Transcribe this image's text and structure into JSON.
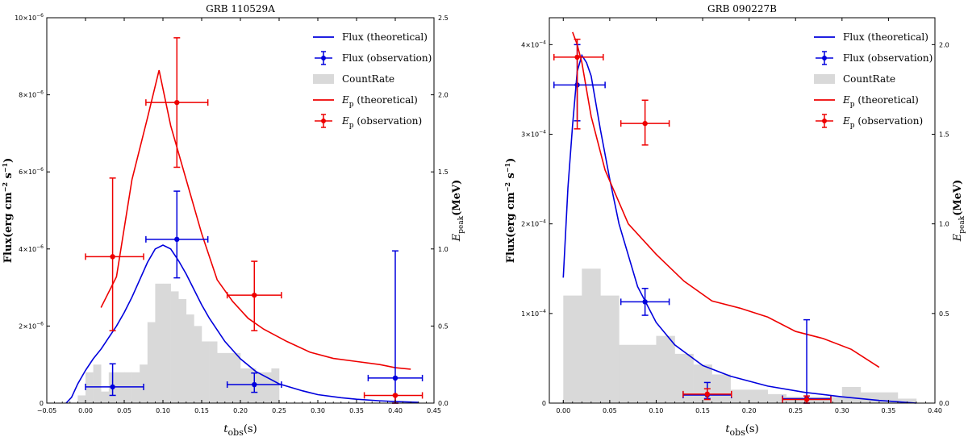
{
  "chart_data": [
    {
      "type": "line",
      "title": "GRB 110529A",
      "xlabel": "t_obs(s)",
      "ylabel": "Flux(erg cm^-2 s^-1)",
      "y2label": "E_peak(MeV)",
      "xlim": [
        -0.05,
        0.45
      ],
      "ylim": [
        0,
        1e-05
      ],
      "y2lim": [
        0,
        2.5
      ],
      "x_ticks": [
        -0.05,
        0.0,
        0.05,
        0.1,
        0.15,
        0.2,
        0.25,
        0.3,
        0.35,
        0.4,
        0.45
      ],
      "x_tick_labels": [
        "−0.05",
        "0.00",
        "0.05",
        "0.10",
        "0.15",
        "0.20",
        "0.25",
        "0.30",
        "0.35",
        "0.40",
        "0.45"
      ],
      "y_ticks": [
        0,
        2e-06,
        4e-06,
        6e-06,
        8e-06,
        1e-05
      ],
      "y_tick_labels": [
        "0",
        "2×10⁻⁶",
        "4×10⁻⁶",
        "6×10⁻⁶",
        "8×10⁻⁶",
        "10×10⁻⁶"
      ],
      "y2_ticks": [
        0,
        0.5,
        1.0,
        1.5,
        2.0,
        2.5
      ],
      "y2_tick_labels": [
        "0.0",
        "0.5",
        "1.0",
        "1.5",
        "2.0",
        "2.5"
      ],
      "legend": {
        "position": "top-right",
        "entries": [
          {
            "label": "Flux (theoretical)",
            "kind": "line",
            "color": "#0000dd"
          },
          {
            "label": "Flux (observation)",
            "kind": "errorbar",
            "color": "#0000dd"
          },
          {
            "label": "CountRate",
            "kind": "patch",
            "color": "#d9d9d9"
          },
          {
            "label": "Ep (theoretical)",
            "kind": "line",
            "color": "#ee0000"
          },
          {
            "label": "Ep (observation)",
            "kind": "errorbar",
            "color": "#ee0000"
          }
        ]
      },
      "count_rate": {
        "axis": "y",
        "bin_width": 0.01,
        "x": [
          -0.01,
          0.0,
          0.01,
          0.02,
          0.03,
          0.04,
          0.05,
          0.06,
          0.07,
          0.08,
          0.09,
          0.1,
          0.11,
          0.12,
          0.13,
          0.14,
          0.15,
          0.16,
          0.17,
          0.18,
          0.19,
          0.2,
          0.21,
          0.22,
          0.23,
          0.24
        ],
        "values": [
          2e-07,
          8e-07,
          1e-06,
          3e-07,
          8e-07,
          8e-07,
          8e-07,
          8e-07,
          1e-06,
          2.1e-06,
          3.1e-06,
          3.1e-06,
          2.9e-06,
          2.7e-06,
          2.3e-06,
          2e-06,
          1.6e-06,
          1.6e-06,
          1.3e-06,
          1.3e-06,
          1.3e-06,
          9e-07,
          9e-07,
          8e-07,
          8e-07,
          9e-07
        ]
      },
      "flux_theoretical": {
        "axis": "y",
        "x": [
          -0.025,
          -0.018,
          -0.01,
          0.0,
          0.01,
          0.02,
          0.03,
          0.04,
          0.05,
          0.06,
          0.07,
          0.08,
          0.09,
          0.1,
          0.11,
          0.12,
          0.13,
          0.14,
          0.15,
          0.16,
          0.18,
          0.2,
          0.22,
          0.25,
          0.28,
          0.3,
          0.33,
          0.35,
          0.38,
          0.4,
          0.43
        ],
        "values": [
          0.0,
          1.5e-07,
          5e-07,
          8.5e-07,
          1.15e-06,
          1.4e-06,
          1.7e-06,
          2e-06,
          2.35e-06,
          2.75e-06,
          3.2e-06,
          3.65e-06,
          4e-06,
          4.1e-06,
          4e-06,
          3.7e-06,
          3.35e-06,
          2.95e-06,
          2.55e-06,
          2.2e-06,
          1.6e-06,
          1.15e-06,
          8.2e-07,
          5e-07,
          3.2e-07,
          2.2e-07,
          1.4e-07,
          1e-07,
          6e-08,
          4e-08,
          2e-08
        ]
      },
      "ep_theoretical": {
        "axis": "y2",
        "x": [
          0.02,
          0.04,
          0.06,
          0.08,
          0.095,
          0.11,
          0.13,
          0.15,
          0.17,
          0.19,
          0.21,
          0.23,
          0.26,
          0.29,
          0.32,
          0.35,
          0.38,
          0.4,
          0.42
        ],
        "values": [
          0.62,
          0.82,
          1.45,
          1.85,
          2.16,
          1.8,
          1.45,
          1.1,
          0.8,
          0.66,
          0.55,
          0.48,
          0.4,
          0.33,
          0.29,
          0.27,
          0.25,
          0.23,
          0.22
        ]
      },
      "flux_observation": {
        "axis": "y",
        "points": [
          {
            "x": 0.035,
            "y": 4.2e-07,
            "xerr": [
              0.035,
              0.04
            ],
            "yerr": [
              2.2e-07,
              6e-07
            ]
          },
          {
            "x": 0.118,
            "y": 4.25e-06,
            "xerr": [
              0.04,
              0.04
            ],
            "yerr": [
              1e-06,
              1.25e-06
            ]
          },
          {
            "x": 0.218,
            "y": 4.8e-07,
            "xerr": [
              0.035,
              0.035
            ],
            "yerr": [
              2e-07,
              3e-07
            ]
          },
          {
            "x": 0.4,
            "y": 6.5e-07,
            "xerr": [
              0.035,
              0.035
            ],
            "yerr": [
              6.5e-07,
              3.3e-06
            ]
          }
        ]
      },
      "ep_observation": {
        "axis": "y2",
        "points": [
          {
            "x": 0.035,
            "y": 0.95,
            "xerr": [
              0.035,
              0.04
            ],
            "yerr": [
              0.48,
              0.51
            ]
          },
          {
            "x": 0.118,
            "y": 1.95,
            "xerr": [
              0.04,
              0.04
            ],
            "yerr": [
              0.42,
              0.42
            ]
          },
          {
            "x": 0.218,
            "y": 0.7,
            "xerr": [
              0.035,
              0.035
            ],
            "yerr": [
              0.23,
              0.22
            ]
          },
          {
            "x": 0.4,
            "y": 0.05,
            "xerr": [
              0.04,
              0.035
            ],
            "yerr": [
              0.05,
              0.0
            ]
          }
        ]
      }
    },
    {
      "type": "line",
      "title": "GRB 090227B",
      "xlabel": "t_obs(s)",
      "ylabel": "Flux(erg cm^-2 s^-1)",
      "y2label": "E_peak(MeV)",
      "xlim": [
        -0.015,
        0.4
      ],
      "ylim": [
        0,
        0.00043
      ],
      "y2lim": [
        0,
        2.15
      ],
      "x_ticks": [
        0.0,
        0.05,
        0.1,
        0.15,
        0.2,
        0.25,
        0.3,
        0.35,
        0.4
      ],
      "x_tick_labels": [
        "0.00",
        "0.05",
        "0.10",
        "0.15",
        "0.20",
        "0.25",
        "0.30",
        "0.35",
        "0.40"
      ],
      "y_ticks": [
        0,
        0.0001,
        0.0002,
        0.0003,
        0.0004
      ],
      "y_tick_labels": [
        "0",
        "1×10⁻⁴",
        "2×10⁻⁴",
        "3×10⁻⁴",
        "4×10⁻⁴"
      ],
      "y2_ticks": [
        0,
        0.5,
        1.0,
        1.5,
        2.0
      ],
      "y2_tick_labels": [
        "0.0",
        "0.5",
        "1.0",
        "1.5",
        "2.0"
      ],
      "legend": {
        "position": "top-right",
        "entries": [
          {
            "label": "Flux (theoretical)",
            "kind": "line",
            "color": "#0000dd"
          },
          {
            "label": "Flux (observation)",
            "kind": "errorbar",
            "color": "#0000dd"
          },
          {
            "label": "CountRate",
            "kind": "patch",
            "color": "#d9d9d9"
          },
          {
            "label": "Ep (theoretical)",
            "kind": "line",
            "color": "#ee0000"
          },
          {
            "label": "Ep (observation)",
            "kind": "errorbar",
            "color": "#ee0000"
          }
        ]
      },
      "count_rate": {
        "axis": "y",
        "bin_width": 0.02,
        "x": [
          0.0,
          0.02,
          0.04,
          0.06,
          0.08,
          0.1,
          0.12,
          0.14,
          0.16,
          0.18,
          0.2,
          0.22,
          0.24,
          0.26,
          0.28,
          0.3,
          0.32,
          0.34,
          0.36
        ],
        "values": [
          0.00012,
          0.00015,
          0.00012,
          6.5e-05,
          6.5e-05,
          7.5e-05,
          5.5e-05,
          4.3e-05,
          3.2e-05,
          1.5e-05,
          1.5e-05,
          1e-05,
          7e-06,
          7e-06,
          7e-06,
          1.8e-05,
          1.2e-05,
          1.2e-05,
          5e-06
        ]
      },
      "flux_theoretical": {
        "axis": "y",
        "x": [
          0.0,
          0.005,
          0.01,
          0.015,
          0.02,
          0.025,
          0.03,
          0.04,
          0.05,
          0.06,
          0.08,
          0.1,
          0.12,
          0.15,
          0.18,
          0.22,
          0.26,
          0.3,
          0.34,
          0.38
        ],
        "values": [
          0.00014,
          0.00024,
          0.00031,
          0.00037,
          0.000388,
          0.00038,
          0.000365,
          0.000305,
          0.00025,
          0.0002,
          0.00013,
          9e-05,
          6.5e-05,
          4.2e-05,
          3e-05,
          1.9e-05,
          1.2e-05,
          7e-06,
          3e-06,
          0.0
        ]
      },
      "ep_theoretical": {
        "axis": "y2",
        "x": [
          0.01,
          0.015,
          0.02,
          0.03,
          0.045,
          0.07,
          0.1,
          0.13,
          0.16,
          0.19,
          0.22,
          0.25,
          0.28,
          0.31,
          0.34
        ],
        "values": [
          2.07,
          2.0,
          1.9,
          1.6,
          1.3,
          1.0,
          0.83,
          0.68,
          0.57,
          0.53,
          0.48,
          0.4,
          0.36,
          0.3,
          0.2
        ]
      },
      "flux_observation": {
        "axis": "y",
        "points": [
          {
            "x": 0.015,
            "y": 0.000355,
            "xerr": [
              0.025,
              0.03
            ],
            "yerr": [
              4e-05,
              4.5e-05
            ]
          },
          {
            "x": 0.088,
            "y": 0.000113,
            "xerr": [
              0.026,
              0.026
            ],
            "yerr": [
              1.5e-05,
              1.5e-05
            ]
          },
          {
            "x": 0.155,
            "y": 9e-06,
            "xerr": [
              0.026,
              0.026
            ],
            "yerr": [
              4e-06,
              1.4e-05
            ]
          },
          {
            "x": 0.262,
            "y": 5e-06,
            "xerr": [
              0.026,
              0.026
            ],
            "yerr": [
              5e-06,
              8.8e-05
            ]
          }
        ]
      },
      "ep_observation": {
        "axis": "y2",
        "points": [
          {
            "x": 0.015,
            "y": 1.93,
            "xerr": [
              0.025,
              0.028
            ],
            "yerr": [
              0.4,
              0.1
            ]
          },
          {
            "x": 0.088,
            "y": 1.56,
            "xerr": [
              0.026,
              0.026
            ],
            "yerr": [
              0.12,
              0.13
            ]
          },
          {
            "x": 0.155,
            "y": 0.05,
            "xerr": [
              0.026,
              0.026
            ],
            "yerr": [
              0.03,
              0.03
            ]
          },
          {
            "x": 0.262,
            "y": 0.02,
            "xerr": [
              0.026,
              0.026
            ],
            "yerr": [
              0.02,
              0.02
            ]
          }
        ]
      }
    }
  ]
}
